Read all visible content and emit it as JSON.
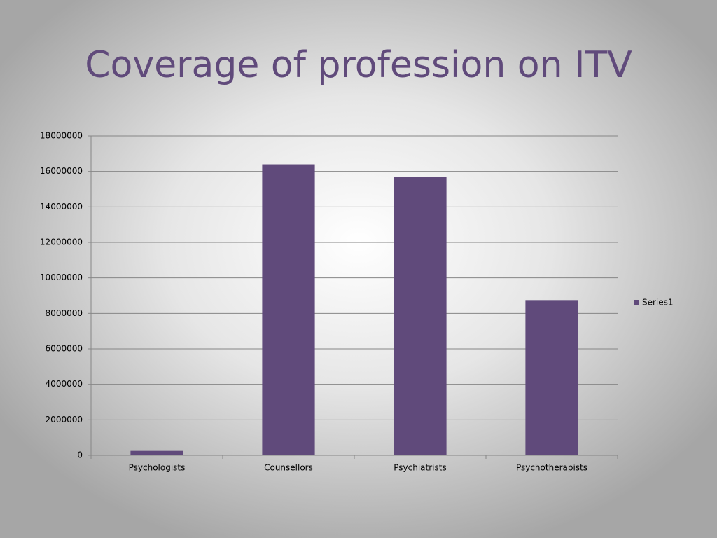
{
  "chart_data": {
    "type": "bar",
    "title": "Coverage of profession on ITV",
    "categories": [
      "Psychologists",
      "Counsellors",
      "Psychiatrists",
      "Psychotherapists"
    ],
    "series": [
      {
        "name": "Series1",
        "color": "#604a7b",
        "values": [
          250000,
          16400000,
          15700000,
          8750000
        ]
      }
    ],
    "ylim": [
      0,
      18000000
    ],
    "yticks": [
      0,
      2000000,
      4000000,
      6000000,
      8000000,
      10000000,
      12000000,
      14000000,
      16000000,
      18000000
    ],
    "grid": true,
    "legend": "right"
  }
}
